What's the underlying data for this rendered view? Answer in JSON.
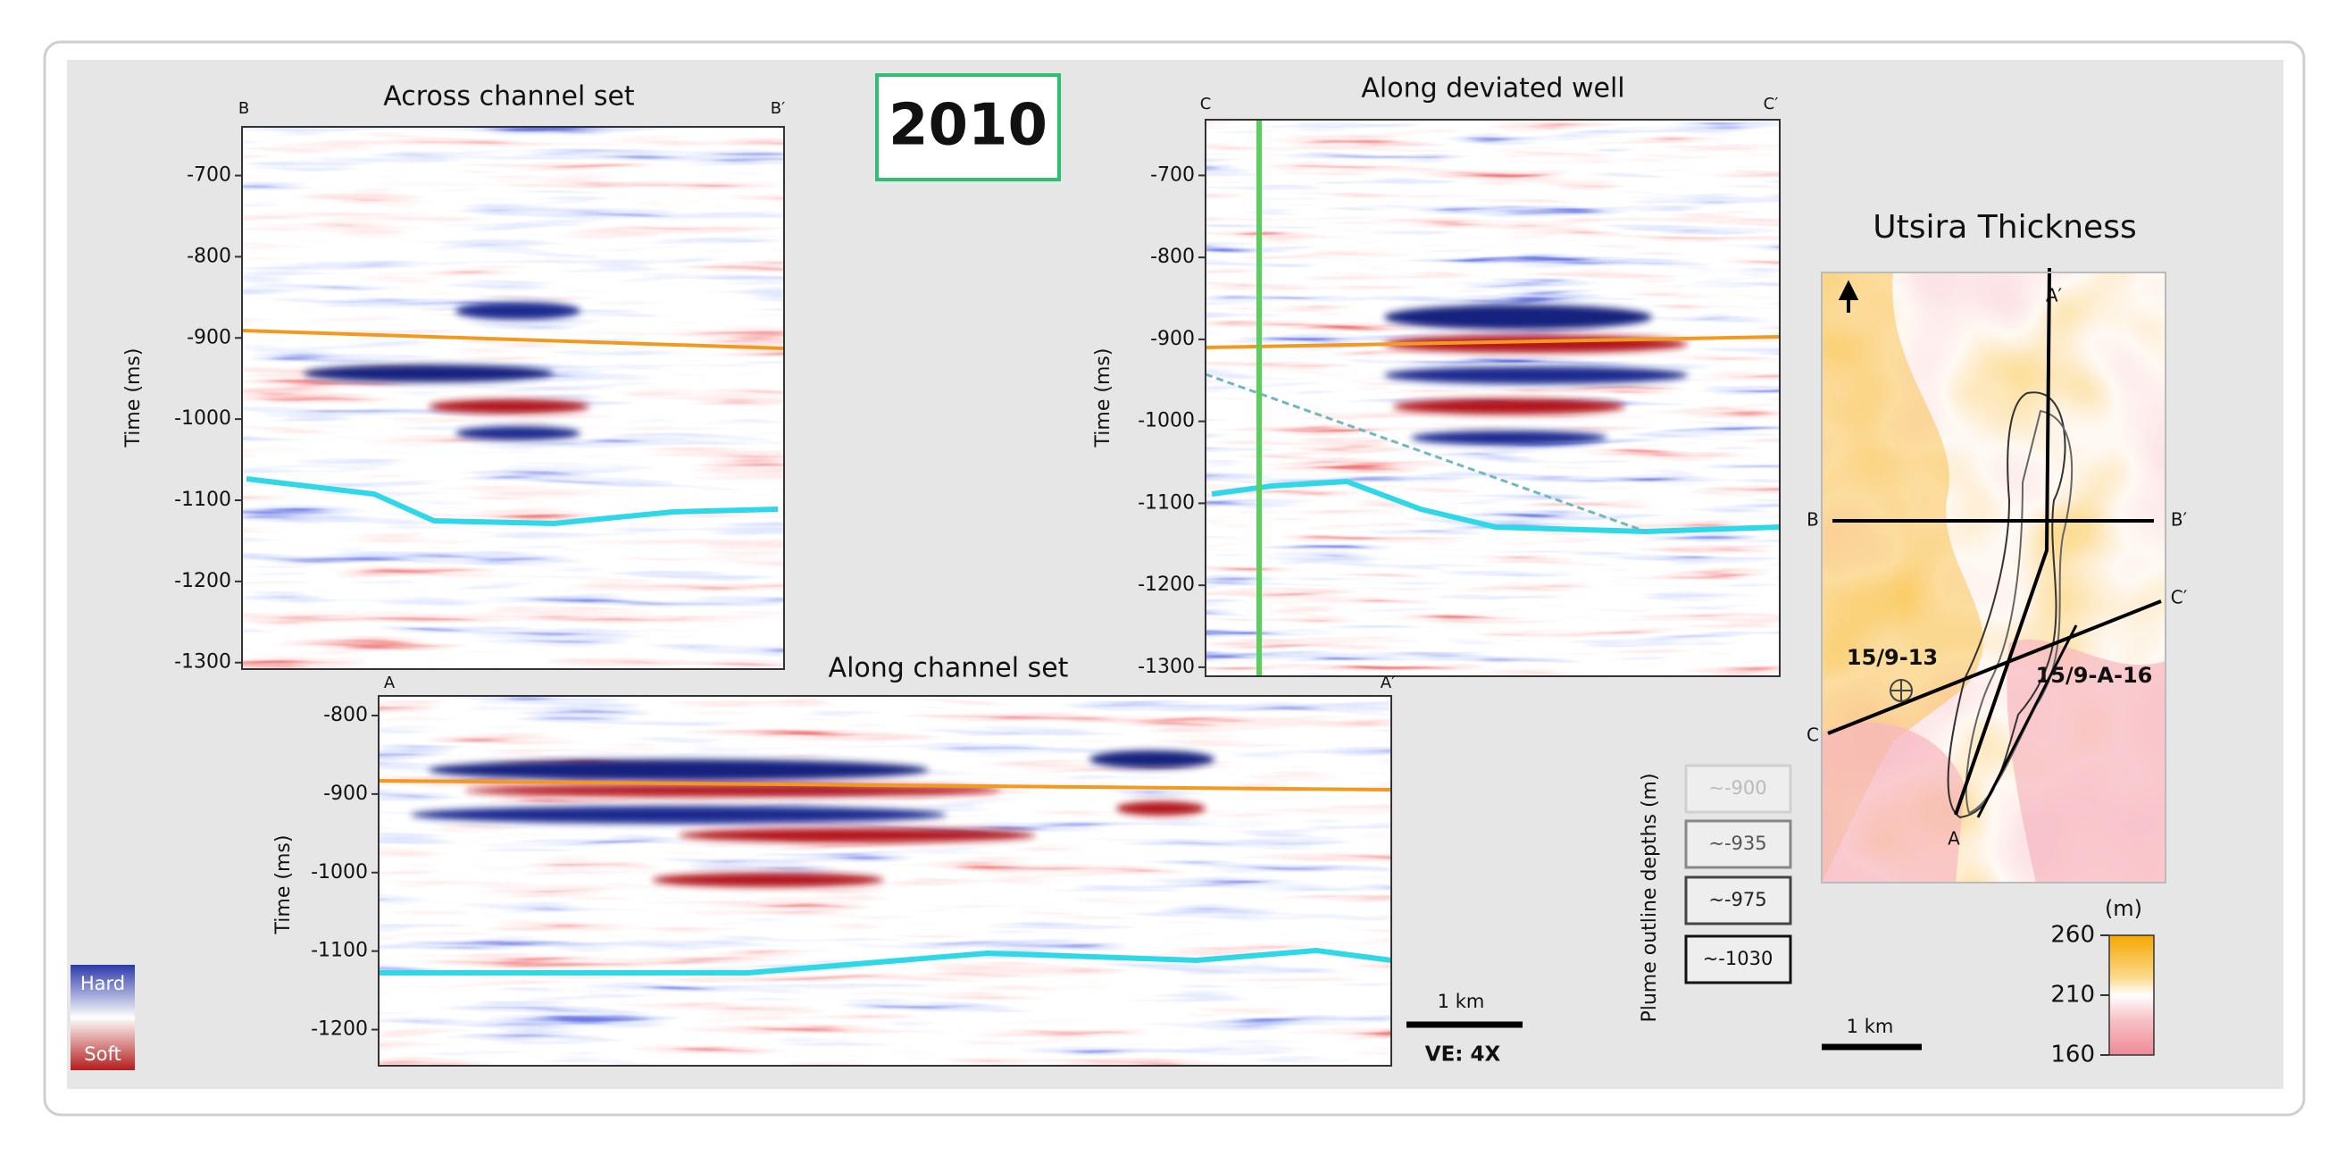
{
  "badge": "2010",
  "panels": [
    {
      "title": "Across channel set",
      "left_label": "B",
      "right_label": "B′",
      "y_label": "Time (ms)",
      "ylim": [
        -640,
        -1308
      ],
      "yticks": [
        -700,
        -800,
        -900,
        -1000,
        -1100,
        -1200,
        -1300
      ]
    },
    {
      "title": "Along deviated well",
      "left_label": "C",
      "right_label": "C′",
      "y_label": "Time (ms)",
      "ylim": [
        -632,
        -1311
      ],
      "yticks": [
        -700,
        -800,
        -900,
        -1000,
        -1100,
        -1200,
        -1300
      ]
    },
    {
      "title": "Along channel set",
      "left_label": "A",
      "right_label": "A′",
      "y_label": "Time (ms)",
      "ylim": [
        -775,
        -1246
      ],
      "yticks": [
        -800,
        -900,
        -1000,
        -1100,
        -1200
      ]
    }
  ],
  "amplitude_legend": {
    "hard": "Hard",
    "soft": "Soft"
  },
  "section_scale": {
    "label": "1 km",
    "exaggeration": "VE: 4X"
  },
  "plume_legend": {
    "title": "Plume outline depths (m)",
    "items": [
      "~-900",
      "~-935",
      "~-975",
      "~-1030"
    ]
  },
  "map": {
    "title": "Utsira Thickness",
    "labels": {
      "a_end": "A′",
      "a_start": "A",
      "b_start": "B",
      "b_end": "B′",
      "c_start": "C",
      "c_end": "C′"
    },
    "wells": [
      "15/9-13",
      "15/9-A-16"
    ],
    "scale_label": "1 km",
    "colorbar": {
      "unit": "(m)",
      "range": [
        160,
        260
      ],
      "ticks": [
        260,
        210,
        160
      ]
    }
  }
}
